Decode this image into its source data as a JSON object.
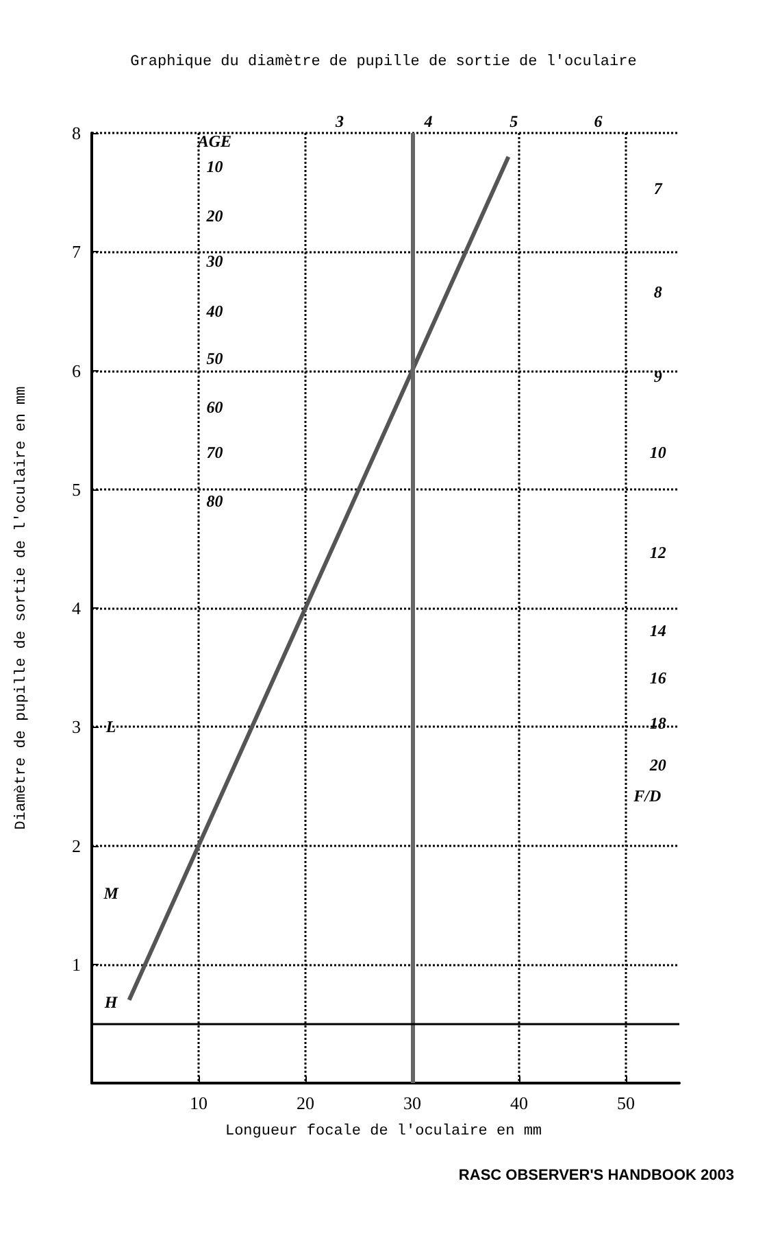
{
  "chart_data": {
    "type": "line",
    "title": "Graphique du diamètre de pupille de sortie de l'oculaire",
    "xlabel": "Longueur focale de l'oculaire en mm",
    "ylabel": "Diamètre de pupille de sortie de l'oculaire en mm",
    "x": [
      3.5,
      39
    ],
    "series": [
      {
        "color": "#555555",
        "values": [
          0.7,
          7.8
        ]
      }
    ],
    "xlim": [
      0,
      55
    ],
    "xticks": [
      10,
      20,
      30,
      40,
      50
    ],
    "ylim": [
      0,
      8
    ],
    "yticks": [
      1,
      2,
      3,
      4,
      5,
      6,
      7,
      8
    ],
    "grid": true,
    "marker": "none",
    "line_style": "solid",
    "ref_lines": [
      {
        "axis": "x",
        "value": 30,
        "color": "#666666"
      },
      {
        "axis": "y",
        "value": 0.5,
        "color": "#000000"
      }
    ],
    "annotations": [
      {
        "text": "AGE",
        "x": 11.5,
        "y": 7.93
      },
      {
        "text": "10",
        "x": 11.5,
        "y": 7.72
      },
      {
        "text": "20",
        "x": 11.5,
        "y": 7.3
      },
      {
        "text": "30",
        "x": 11.5,
        "y": 6.92
      },
      {
        "text": "40",
        "x": 11.5,
        "y": 6.5
      },
      {
        "text": "50",
        "x": 11.5,
        "y": 6.1
      },
      {
        "text": "60",
        "x": 11.5,
        "y": 5.69
      },
      {
        "text": "70",
        "x": 11.5,
        "y": 5.31
      },
      {
        "text": "80",
        "x": 11.5,
        "y": 4.9
      },
      {
        "text": "3",
        "x": 23.2,
        "y": 8.1
      },
      {
        "text": "4",
        "x": 31.5,
        "y": 8.1
      },
      {
        "text": "5",
        "x": 39.5,
        "y": 8.1
      },
      {
        "text": "6",
        "x": 47.4,
        "y": 8.1
      },
      {
        "text": "7",
        "x": 53,
        "y": 7.53
      },
      {
        "text": "8",
        "x": 53,
        "y": 6.66
      },
      {
        "text": "9",
        "x": 53,
        "y": 5.95
      },
      {
        "text": "10",
        "x": 53,
        "y": 5.31
      },
      {
        "text": "12",
        "x": 53,
        "y": 4.47
      },
      {
        "text": "14",
        "x": 53,
        "y": 3.81
      },
      {
        "text": "16",
        "x": 53,
        "y": 3.41
      },
      {
        "text": "18",
        "x": 53,
        "y": 3.03
      },
      {
        "text": "20",
        "x": 53,
        "y": 2.68
      },
      {
        "text": "F/D",
        "x": 52,
        "y": 2.42
      },
      {
        "text": "L",
        "x": 1.8,
        "y": 3
      },
      {
        "text": "M",
        "x": 1.8,
        "y": 1.6
      },
      {
        "text": "H",
        "x": 1.8,
        "y": 0.68
      },
      "RASC OBSERVER'S HANDBOOK 2003"
    ]
  }
}
